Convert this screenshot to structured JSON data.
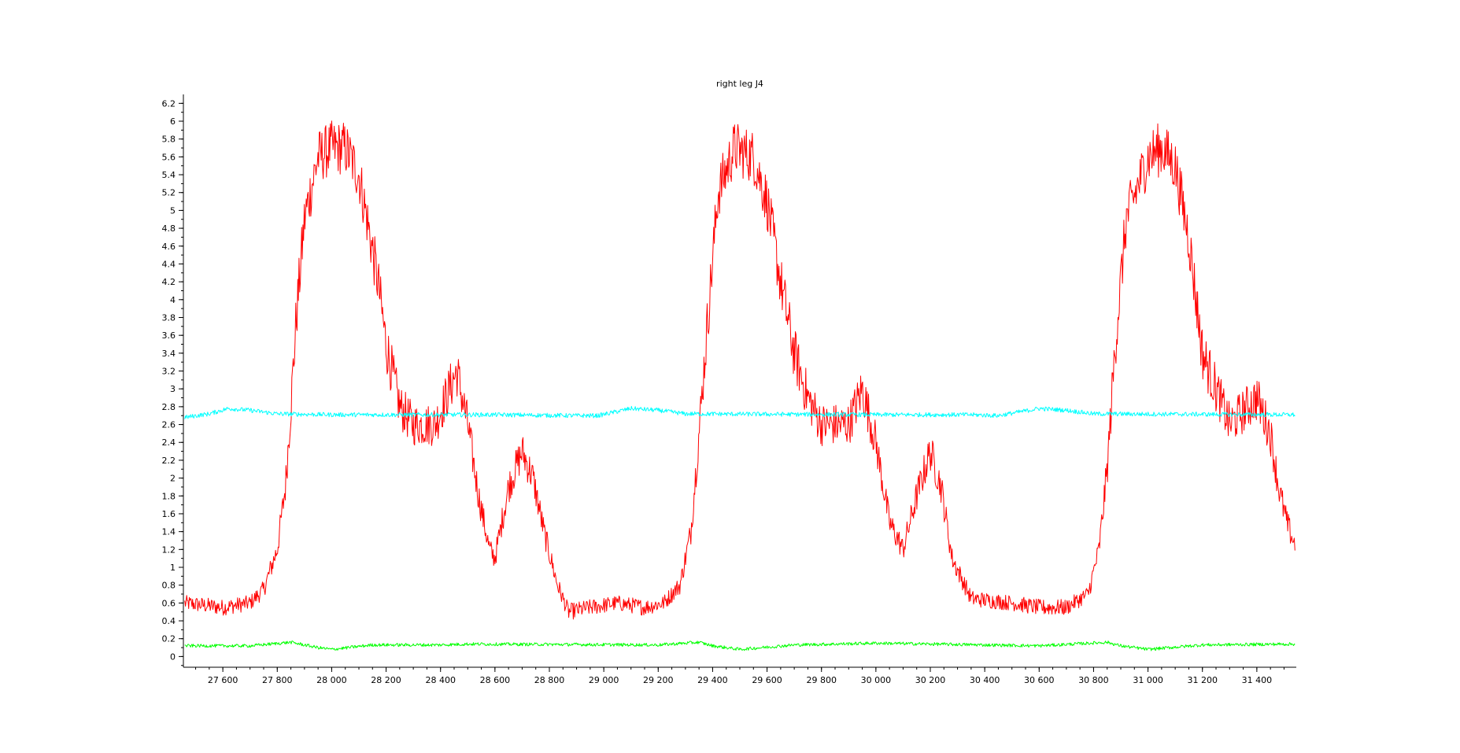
{
  "chart_data": {
    "type": "line",
    "title": "right leg J4",
    "xlabel": "",
    "ylabel": "",
    "xlim": [
      27455,
      31545
    ],
    "ylim": [
      -0.12,
      6.3
    ],
    "x_ticks": [
      27600,
      27800,
      28000,
      28200,
      28400,
      28600,
      28800,
      29000,
      29200,
      29400,
      29600,
      29800,
      30000,
      30200,
      30400,
      30600,
      30800,
      31000,
      31200,
      31400
    ],
    "x_tick_labels": [
      "27 600",
      "27 800",
      "28 000",
      "28 200",
      "28 400",
      "28 600",
      "28 800",
      "29 000",
      "29 200",
      "29 400",
      "29 600",
      "29 800",
      "30 000",
      "30 200",
      "30 400",
      "30 600",
      "30 800",
      "31 000",
      "31 200",
      "31 400"
    ],
    "y_ticks": [
      0,
      0.2,
      0.4,
      0.6,
      0.8,
      1,
      1.2,
      1.4,
      1.6,
      1.8,
      2,
      2.2,
      2.4,
      2.6,
      2.8,
      3,
      3.2,
      3.4,
      3.6,
      3.8,
      4,
      4.2,
      4.4,
      4.6,
      4.8,
      5,
      5.2,
      5.4,
      5.6,
      5.8,
      6,
      6.2
    ],
    "y_tick_labels": [
      "0",
      "0.2",
      "0.4",
      "0.6",
      "0.8",
      "1",
      "1.2",
      "1.4",
      "1.6",
      "1.8",
      "2",
      "2.2",
      "2.4",
      "2.6",
      "2.8",
      "3",
      "3.2",
      "3.4",
      "3.6",
      "3.8",
      "4",
      "4.2",
      "4.4",
      "4.6",
      "4.8",
      "5",
      "5.2",
      "5.4",
      "5.6",
      "5.8",
      "6",
      "6.2"
    ],
    "grid": false,
    "legend": "none",
    "series": [
      {
        "color": "#ff0000",
        "noise": 0.22,
        "x": [
          27460,
          27600,
          27700,
          27750,
          27800,
          27830,
          27850,
          27870,
          27900,
          27950,
          28000,
          28050,
          28100,
          28130,
          28170,
          28200,
          28250,
          28300,
          28380,
          28420,
          28460,
          28500,
          28540,
          28580,
          28600,
          28650,
          28700,
          28740,
          28780,
          28830,
          28870,
          28950,
          29050,
          29150,
          29220,
          29280,
          29320,
          29350,
          29380,
          29420,
          29480,
          29550,
          29600,
          29650,
          29700,
          29750,
          29800,
          29900,
          29950,
          30000,
          30050,
          30100,
          30150,
          30200,
          30240,
          30280,
          30350,
          30500,
          30600,
          30700,
          30780,
          30820,
          30850,
          30880,
          30920,
          31000,
          31050,
          31100,
          31150,
          31200,
          31300,
          31400,
          31450,
          31480,
          31510,
          31540
        ],
        "y": [
          0.6,
          0.55,
          0.6,
          0.75,
          1.2,
          1.9,
          2.8,
          3.8,
          4.9,
          5.6,
          5.7,
          5.7,
          5.4,
          4.9,
          4.2,
          3.5,
          2.8,
          2.6,
          2.6,
          2.9,
          3.2,
          2.6,
          1.8,
          1.2,
          1.1,
          1.9,
          2.3,
          2.0,
          1.4,
          0.8,
          0.5,
          0.55,
          0.6,
          0.55,
          0.6,
          0.8,
          1.4,
          2.5,
          3.7,
          5.2,
          5.7,
          5.6,
          5.1,
          4.2,
          3.4,
          2.9,
          2.6,
          2.6,
          3.0,
          2.4,
          1.5,
          1.2,
          1.8,
          2.3,
          1.9,
          1.1,
          0.65,
          0.6,
          0.55,
          0.55,
          0.7,
          1.2,
          2.1,
          3.5,
          4.9,
          5.6,
          5.7,
          5.5,
          4.7,
          3.4,
          2.6,
          2.9,
          2.5,
          1.9,
          1.5,
          1.25
        ]
      },
      {
        "color": "#00ffff",
        "noise": 0.025,
        "x": [
          27460,
          27550,
          27620,
          27700,
          27800,
          28000,
          28600,
          28900,
          28980,
          29100,
          29200,
          29300,
          30000,
          30350,
          30450,
          30600,
          30700,
          30800,
          31540
        ],
        "y": [
          2.68,
          2.72,
          2.78,
          2.76,
          2.72,
          2.71,
          2.71,
          2.7,
          2.7,
          2.78,
          2.76,
          2.72,
          2.71,
          2.71,
          2.7,
          2.78,
          2.76,
          2.72,
          2.71
        ]
      },
      {
        "color": "#00ff00",
        "noise": 0.018,
        "x": [
          27460,
          27700,
          27850,
          27950,
          28000,
          28150,
          28400,
          28500,
          29200,
          29350,
          29400,
          29500,
          29700,
          30000,
          30600,
          30850,
          30900,
          31000,
          31200,
          31540
        ],
        "y": [
          0.12,
          0.12,
          0.16,
          0.1,
          0.08,
          0.13,
          0.13,
          0.14,
          0.13,
          0.16,
          0.12,
          0.08,
          0.13,
          0.15,
          0.12,
          0.16,
          0.12,
          0.08,
          0.13,
          0.14
        ]
      }
    ]
  }
}
